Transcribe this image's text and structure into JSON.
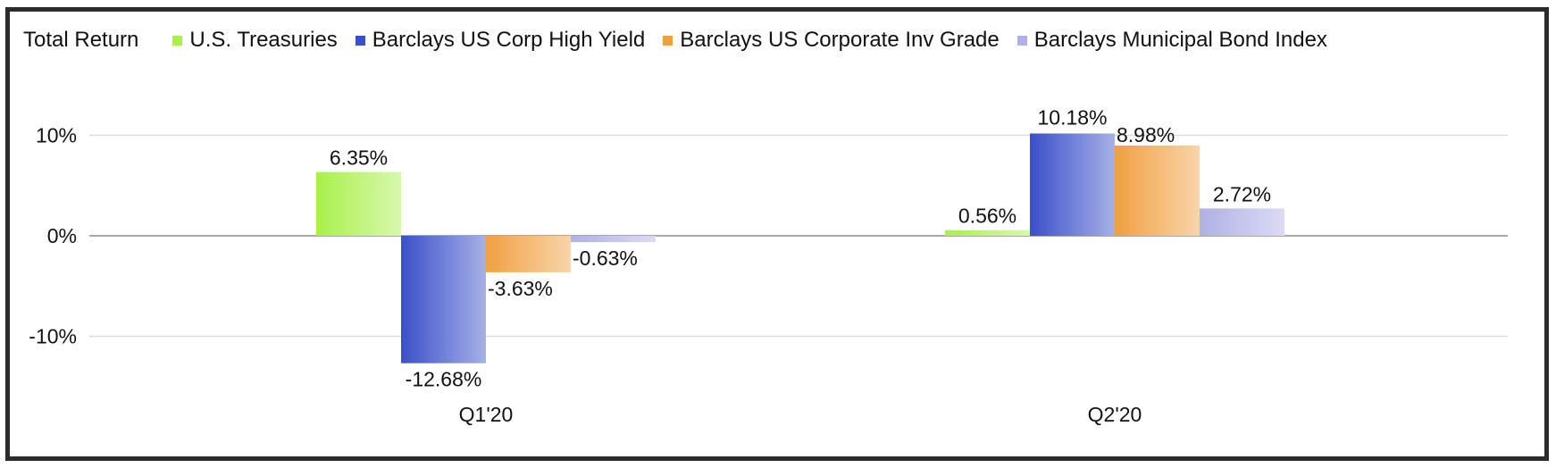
{
  "chart_data": {
    "type": "bar",
    "title": "",
    "legend_title": "Total Return",
    "legend_position": "top-left",
    "categories": [
      "Q1'20",
      "Q2'20"
    ],
    "series": [
      {
        "name": "U.S. Treasuries",
        "color": "#a8f04a",
        "values": [
          6.35,
          0.56
        ],
        "labels": [
          "6.35%",
          "0.56%"
        ]
      },
      {
        "name": "Barclays US Corp High Yield",
        "color": "#3a50c8",
        "values": [
          -12.68,
          10.18
        ],
        "labels": [
          "-12.68%",
          "10.18%"
        ]
      },
      {
        "name": "Barclays US Corporate Inv Grade",
        "color": "#f0a040",
        "values": [
          -3.63,
          8.98
        ],
        "labels": [
          "-3.63%",
          "8.98%"
        ]
      },
      {
        "name": "Barclays Municipal Bond Index",
        "color": "#b0b0e6",
        "values": [
          -0.63,
          2.72
        ],
        "labels": [
          "-0.63%",
          "2.72%"
        ]
      }
    ],
    "y_ticks": [
      {
        "value": 10,
        "label": "10%"
      },
      {
        "value": 0,
        "label": "0%"
      },
      {
        "value": -10,
        "label": "-10%"
      }
    ],
    "ylim": [
      -15,
      15
    ],
    "grid": true,
    "xlabel": "",
    "ylabel": ""
  }
}
